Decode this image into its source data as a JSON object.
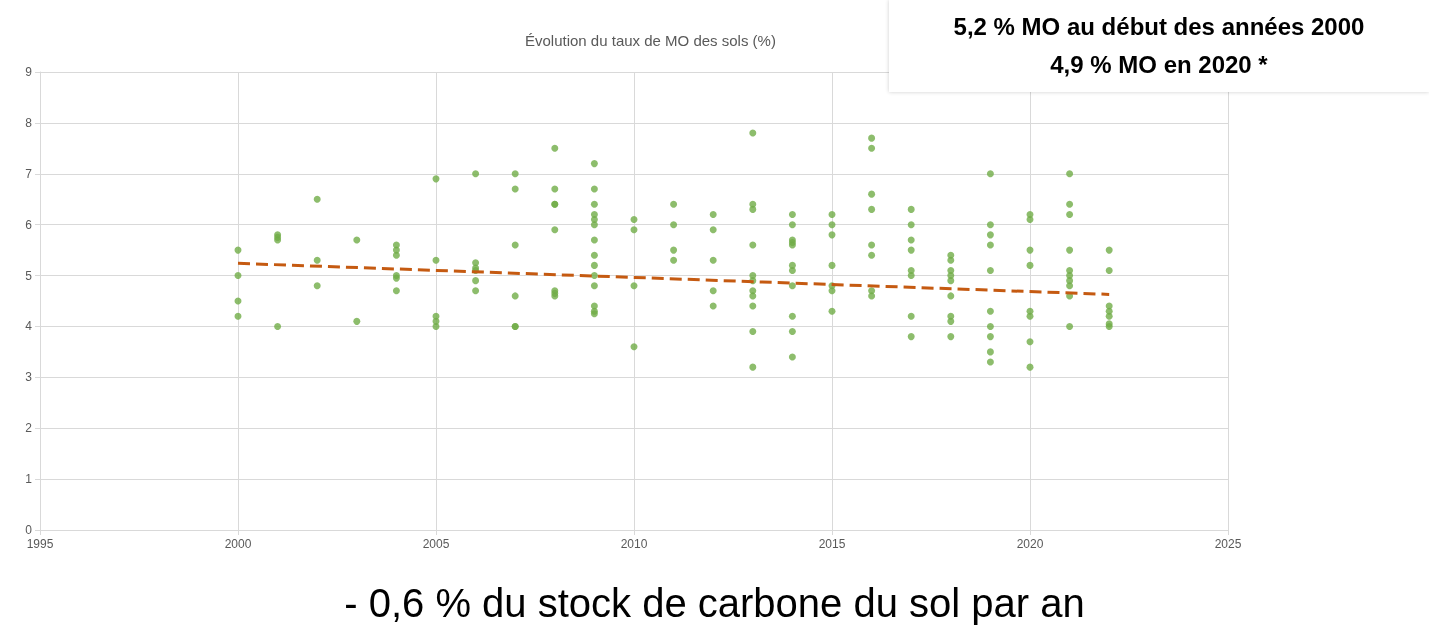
{
  "chart_data": {
    "type": "scatter",
    "title": "Évolution du taux de MO des sols (%)",
    "xlim": [
      1995,
      2025
    ],
    "xticks": [
      1995,
      2000,
      2005,
      2010,
      2015,
      2020,
      2025
    ],
    "ylim": [
      0,
      9
    ],
    "yticks": [
      0,
      1,
      2,
      3,
      4,
      5,
      6,
      7,
      8,
      9
    ],
    "grid": true,
    "marker": "circle",
    "series": [
      {
        "color": "#70ad47",
        "x": [
          2000,
          2000,
          2000,
          2000,
          2001,
          2001,
          2001,
          2001,
          2002,
          2002,
          2002,
          2003,
          2003,
          2004,
          2004,
          2004,
          2004,
          2004,
          2004,
          2005,
          2005,
          2005,
          2005,
          2005,
          2006,
          2006,
          2006,
          2006,
          2006,
          2006,
          2007,
          2007,
          2007,
          2007,
          2007,
          2007,
          2008,
          2008,
          2008,
          2008,
          2008,
          2008,
          2008,
          2008,
          2009,
          2009,
          2009,
          2009,
          2009,
          2009,
          2009,
          2009,
          2009,
          2009,
          2009,
          2009,
          2009,
          2009,
          2010,
          2010,
          2010,
          2010,
          2011,
          2011,
          2011,
          2011,
          2012,
          2012,
          2012,
          2012,
          2012,
          2013,
          2013,
          2013,
          2013,
          2013,
          2013,
          2013,
          2013,
          2013,
          2013,
          2013,
          2014,
          2014,
          2014,
          2014,
          2014,
          2014,
          2014,
          2014,
          2014,
          2014,
          2014,
          2015,
          2015,
          2015,
          2015,
          2015,
          2015,
          2015,
          2016,
          2016,
          2016,
          2016,
          2016,
          2016,
          2016,
          2016,
          2017,
          2017,
          2017,
          2017,
          2017,
          2017,
          2017,
          2017,
          2018,
          2018,
          2018,
          2018,
          2018,
          2018,
          2018,
          2018,
          2018,
          2019,
          2019,
          2019,
          2019,
          2019,
          2019,
          2019,
          2019,
          2019,
          2019,
          2020,
          2020,
          2020,
          2020,
          2020,
          2020,
          2020,
          2020,
          2021,
          2021,
          2021,
          2021,
          2021,
          2021,
          2021,
          2021,
          2021,
          2021,
          2022,
          2022,
          2022,
          2022,
          2022,
          2022,
          2022
        ],
        "values": [
          5.5,
          5.0,
          4.5,
          4.2,
          5.8,
          5.75,
          5.7,
          4.0,
          6.5,
          5.3,
          4.8,
          5.7,
          4.1,
          5.6,
          5.5,
          5.4,
          5.0,
          4.95,
          4.7,
          6.9,
          5.3,
          4.2,
          4.1,
          4.0,
          7.0,
          5.25,
          5.15,
          5.1,
          4.9,
          4.7,
          7.0,
          6.7,
          5.6,
          4.6,
          4.0,
          4.0,
          7.5,
          6.7,
          6.4,
          6.4,
          5.9,
          4.7,
          4.65,
          4.6,
          7.2,
          6.7,
          6.4,
          6.2,
          6.1,
          6.0,
          5.7,
          5.4,
          5.2,
          5.0,
          4.8,
          4.4,
          4.3,
          4.25,
          6.1,
          5.9,
          4.8,
          3.6,
          6.4,
          6.0,
          5.5,
          5.3,
          6.2,
          5.9,
          5.3,
          4.7,
          4.4,
          7.8,
          6.4,
          6.3,
          5.6,
          5.0,
          4.9,
          4.7,
          4.6,
          4.4,
          3.9,
          3.2,
          6.2,
          6.0,
          5.7,
          5.65,
          5.6,
          5.2,
          5.1,
          4.8,
          4.2,
          3.9,
          3.4,
          6.2,
          6.0,
          5.8,
          5.2,
          4.8,
          4.7,
          4.3,
          7.7,
          7.5,
          6.6,
          6.3,
          5.6,
          5.4,
          4.7,
          4.6,
          6.3,
          6.0,
          5.7,
          5.5,
          5.1,
          5.0,
          4.2,
          3.8,
          5.4,
          5.3,
          5.1,
          5.0,
          4.9,
          4.6,
          4.2,
          4.1,
          3.8,
          7.0,
          6.0,
          5.8,
          5.6,
          5.1,
          4.3,
          4.0,
          3.8,
          3.5,
          3.3,
          6.2,
          6.1,
          5.5,
          5.2,
          4.3,
          4.2,
          3.7,
          3.2,
          7.0,
          6.4,
          6.2,
          5.5,
          5.1,
          5.0,
          4.9,
          4.8,
          4.6,
          4.0,
          5.5,
          5.1,
          4.4,
          4.3,
          4.2,
          4.05,
          4.0
        ]
      },
      {
        "type": "line",
        "color": "#c55a11",
        "line_style": "dashed",
        "marker": "none",
        "x": [
          2000,
          2022
        ],
        "values": [
          5.24,
          4.63
        ]
      }
    ],
    "annotations": [
      "5,2 % MO au début des années 2000",
      "4,9 % MO en 2020 *",
      "- 0,6 % du stock de carbone du sol par an"
    ]
  }
}
